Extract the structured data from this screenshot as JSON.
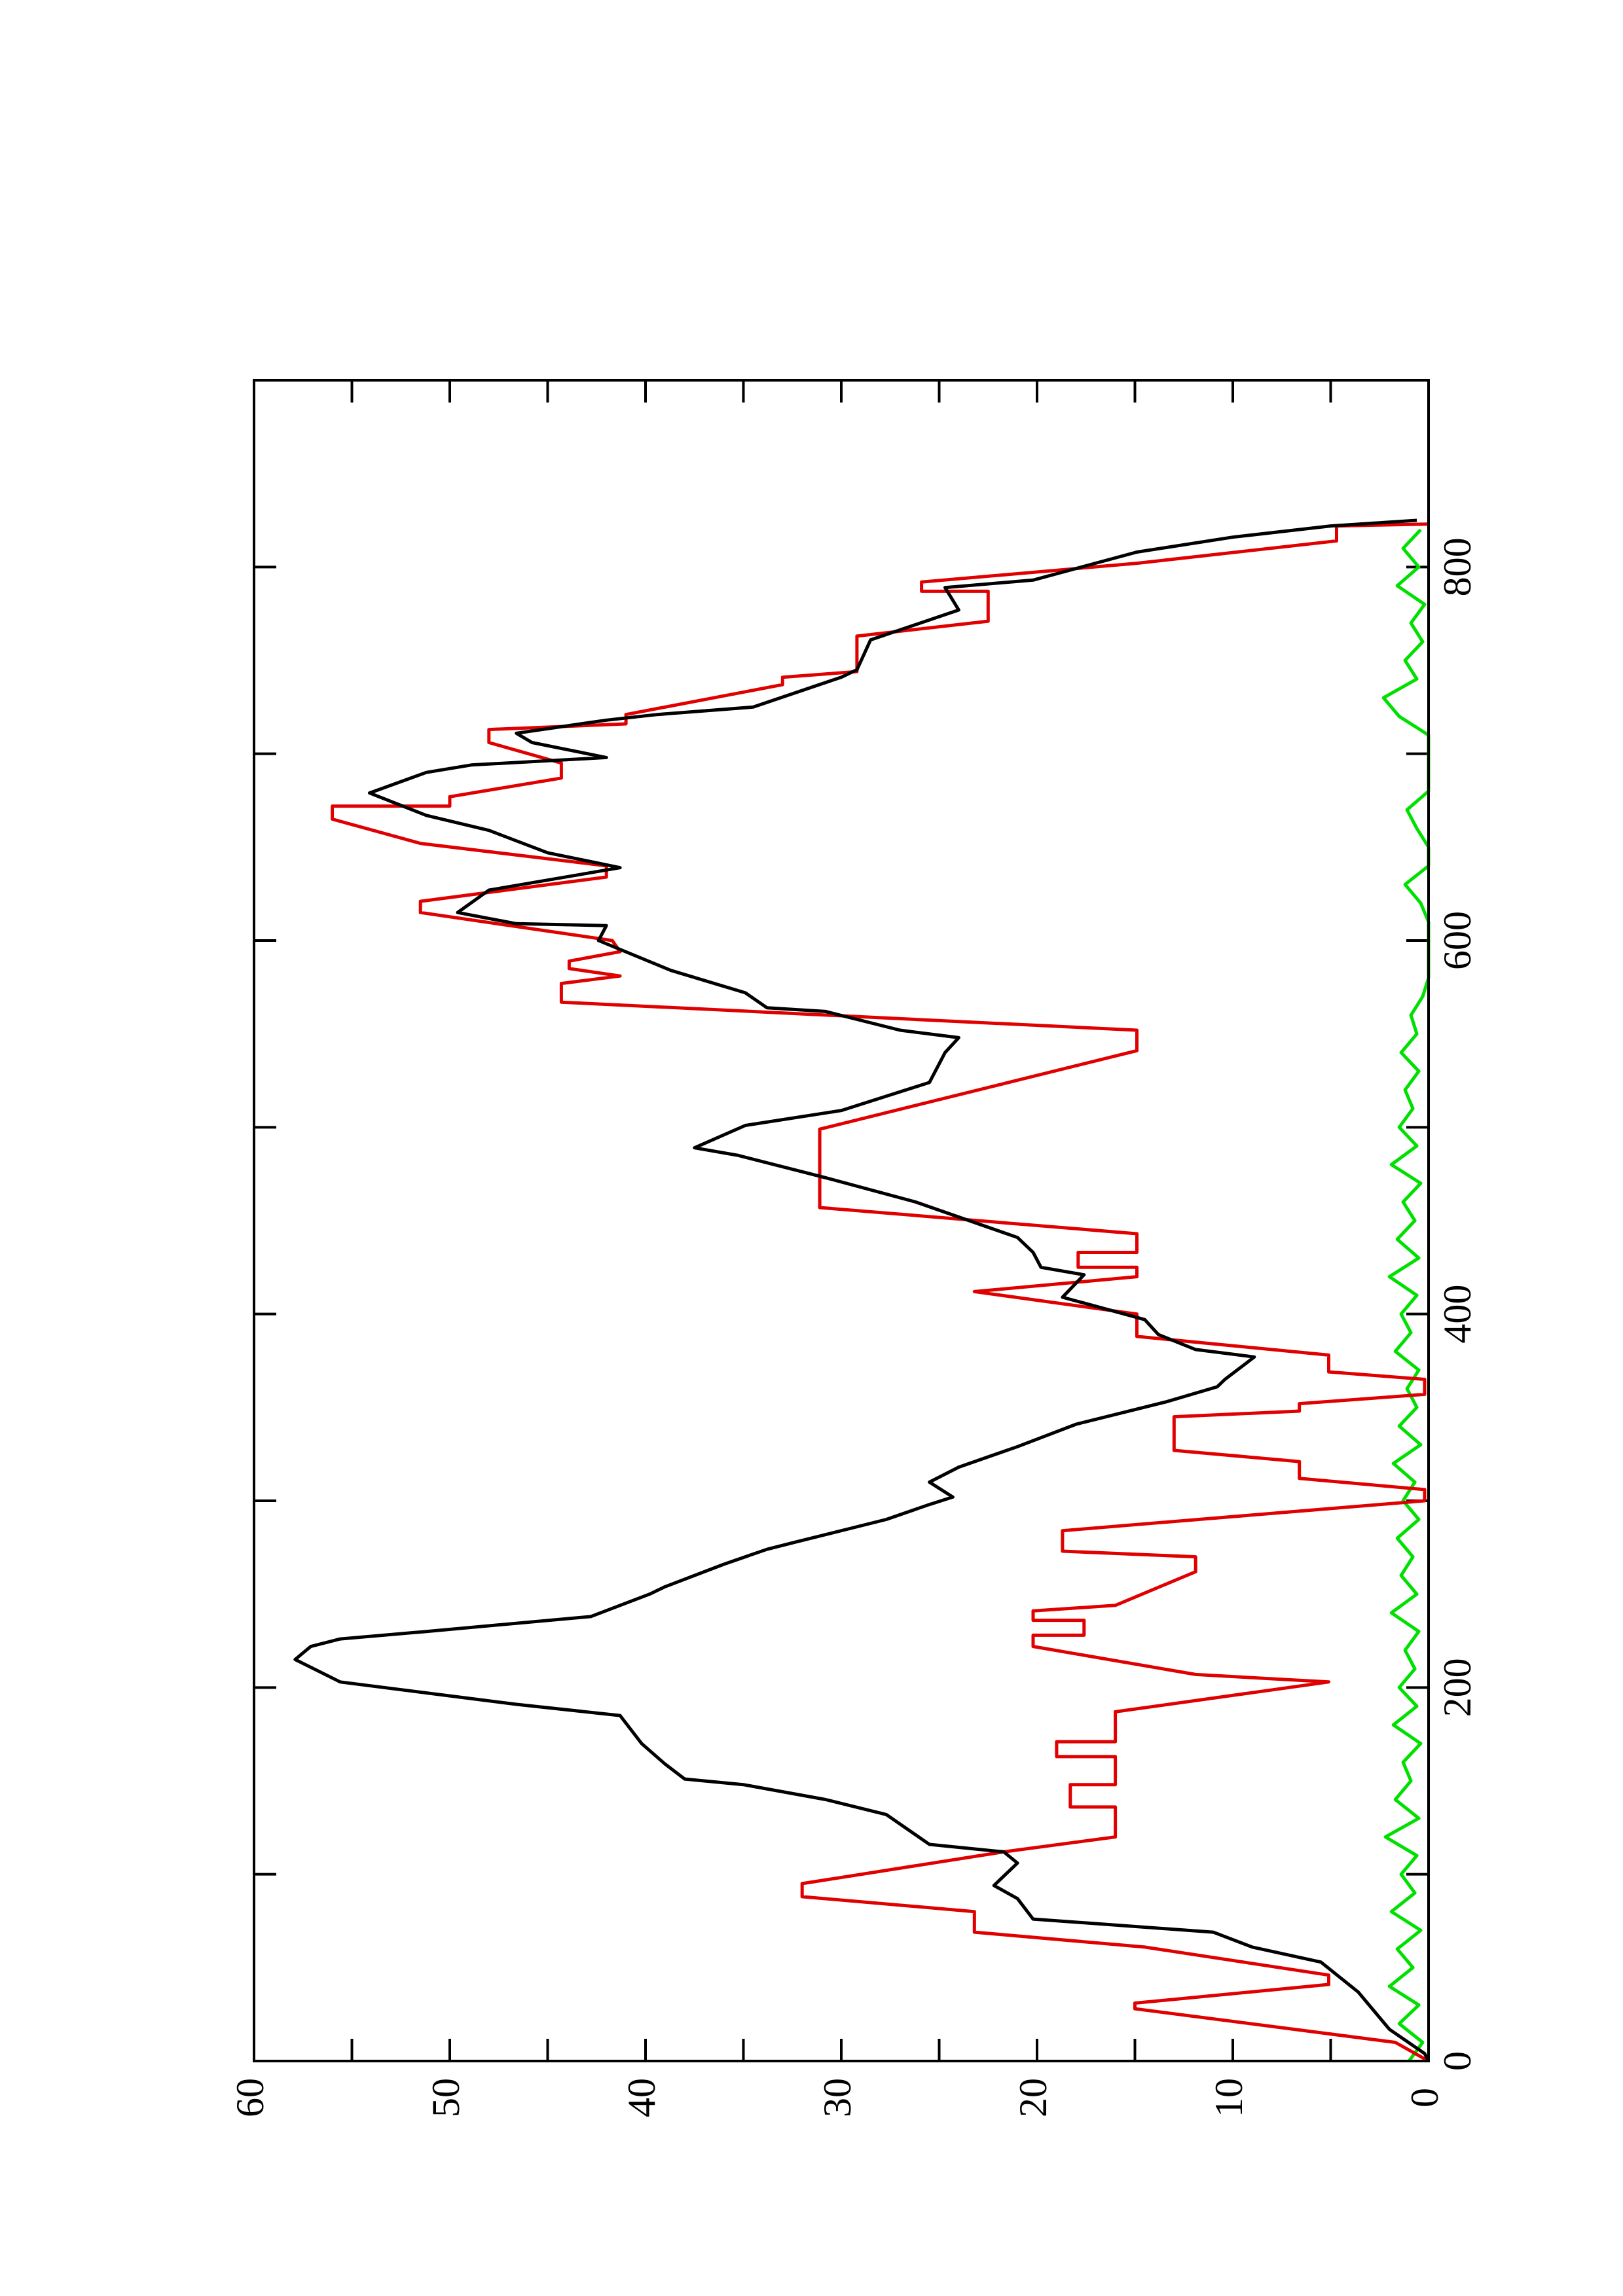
{
  "chart_data": {
    "type": "line",
    "xlim": [
      0,
      900
    ],
    "xticks": [
      0,
      200,
      400,
      600,
      800
    ],
    "xminorticks": [
      100,
      300,
      500,
      700
    ],
    "ylim": [
      0,
      60
    ],
    "yticks": [
      0,
      10,
      20,
      30,
      40,
      50,
      60
    ],
    "yminorticks": [
      5,
      15,
      25,
      35,
      45,
      55
    ],
    "series": [
      {
        "color": "#000000",
        "x": [
          0,
          4,
          17,
          37,
          53,
          61,
          69,
          76,
          87,
          94,
          106,
          112,
          116,
          132,
          140,
          148,
          151,
          159,
          170,
          185,
          191,
          195,
          203,
          215,
          222,
          226,
          230,
          238,
          250,
          254,
          266,
          274,
          278,
          290,
          298,
          302,
          310,
          318,
          329,
          341,
          353,
          361,
          365,
          377,
          381,
          389,
          397,
          409,
          421,
          425,
          433,
          441,
          460,
          473,
          485,
          489,
          501,
          509,
          524,
          540,
          548,
          552,
          562,
          564,
          572,
          584,
          600,
          608,
          609,
          615,
          627,
          639,
          647,
          659,
          667,
          679,
          690,
          694,
          698,
          706,
          711,
          718,
          721,
          725,
          741,
          745,
          761,
          777,
          789,
          793,
          808,
          816,
          822,
          825
        ],
        "values": [
          0,
          0.2,
          2,
          3.6,
          5.5,
          9,
          11,
          20.2,
          21,
          22.2,
          21,
          21.7,
          25.5,
          27.7,
          30.8,
          35,
          38,
          39,
          40.2,
          41.3,
          46.6,
          49.6,
          55.6,
          57.9,
          57.1,
          55.6,
          51.2,
          42.8,
          39.8,
          39,
          36,
          33.8,
          32.3,
          27.7,
          25.5,
          24.3,
          25.5,
          24,
          21,
          18,
          13.4,
          10.8,
          10.4,
          8.9,
          11.9,
          13.8,
          14.5,
          18.7,
          17.6,
          19.8,
          20.2,
          21,
          26.2,
          30.8,
          35.3,
          37.5,
          34.9,
          30,
          25.5,
          24.7,
          24,
          27,
          30.8,
          33.8,
          34.9,
          38.7,
          42.4,
          42,
          46.6,
          49.6,
          48,
          41.3,
          45,
          48,
          51.2,
          54.1,
          51.2,
          48.9,
          42,
          45.8,
          46.6,
          42,
          39.4,
          34.5,
          30,
          29.2,
          28.5,
          24,
          24.7,
          20.2,
          14.9,
          10,
          5,
          0.6
        ]
      },
      {
        "color": "#e00000",
        "x": [
          0,
          10,
          28,
          31,
          41,
          46,
          61,
          69,
          80,
          88,
          95,
          112,
          120,
          136,
          136,
          148,
          148,
          163,
          163,
          171,
          171,
          187,
          203,
          207,
          222,
          228,
          228,
          236,
          236,
          241,
          244,
          262,
          270,
          273,
          284,
          300,
          306,
          312,
          321,
          327,
          345,
          348,
          352,
          357,
          365,
          369,
          378,
          388,
          400,
          412,
          420,
          425,
          425,
          433,
          433,
          443,
          457,
          499,
          541,
          552,
          567,
          577,
          581,
          585,
          589,
          594,
          600,
          615,
          621,
          634,
          640,
          652,
          665,
          672,
          672,
          677,
          687,
          695,
          706,
          713,
          716,
          721,
          737,
          741,
          744,
          763,
          771,
          787,
          787,
          792,
          802,
          814,
          822,
          823
        ],
        "values": [
          0,
          1.7,
          15,
          15,
          5.1,
          5.1,
          14.5,
          23.2,
          23.2,
          32,
          32,
          21.7,
          16,
          16,
          18.3,
          18.3,
          16,
          16,
          19,
          19,
          16,
          16,
          5.1,
          11.9,
          20.2,
          20.2,
          17.6,
          17.6,
          20.2,
          20.2,
          16,
          11.9,
          11.9,
          18.7,
          18.7,
          0.2,
          0.2,
          6.6,
          6.6,
          13,
          13,
          6.6,
          6.6,
          0.2,
          0.2,
          5.1,
          5.1,
          14.9,
          14.9,
          23.2,
          14.9,
          14.9,
          17.9,
          17.9,
          14.9,
          14.9,
          31.1,
          31.1,
          14.9,
          14.9,
          44.3,
          44.3,
          41.3,
          43.9,
          43.9,
          41.3,
          41.7,
          51.5,
          51.5,
          42,
          42,
          51.5,
          56,
          56,
          50,
          50,
          44.3,
          44.3,
          48,
          48,
          41,
          41,
          33,
          33,
          29.2,
          29.2,
          22.5,
          22.5,
          25.9,
          25.9,
          14.9,
          4.7,
          4.7,
          0
        ]
      },
      {
        "color": "#00e000",
        "x": [
          0,
          10,
          20,
          30,
          40,
          50,
          60,
          70,
          80,
          90,
          100,
          110,
          120,
          130,
          140,
          150,
          160,
          170,
          180,
          190,
          200,
          210,
          220,
          230,
          240,
          250,
          260,
          270,
          280,
          290,
          300,
          310,
          320,
          330,
          340,
          350,
          360,
          370,
          380,
          390,
          400,
          410,
          420,
          430,
          440,
          450,
          460,
          470,
          480,
          490,
          500,
          510,
          520,
          530,
          540,
          550,
          560,
          570,
          580,
          590,
          600,
          610,
          620,
          630,
          640,
          650,
          660,
          670,
          680,
          690,
          700,
          710,
          720,
          730,
          740,
          750,
          760,
          770,
          780,
          790,
          800,
          810,
          820
        ],
        "values": [
          1,
          0.3,
          1.5,
          0.5,
          2,
          0.8,
          1.6,
          0.4,
          1.9,
          0.7,
          1.4,
          0.6,
          2.2,
          0.5,
          1.7,
          0.9,
          1.3,
          0.4,
          1.8,
          0.6,
          1.5,
          0.7,
          1.2,
          0.5,
          1.9,
          0.6,
          1.4,
          0.8,
          1.6,
          0.5,
          1.3,
          0.7,
          1.8,
          0.4,
          1.5,
          0.6,
          1.1,
          0.5,
          1.7,
          0.9,
          1.4,
          0.6,
          2,
          0.5,
          1.6,
          0.7,
          1.3,
          0.4,
          1.9,
          0.6,
          1.5,
          0.8,
          1.2,
          0.5,
          1.4,
          0.6,
          0.9,
          0.3,
          0,
          0,
          0,
          0,
          0.4,
          1.2,
          0,
          0,
          0.6,
          1.1,
          0,
          0,
          0,
          0,
          1.5,
          2.3,
          0.6,
          1.2,
          0.3,
          0.9,
          0.2,
          1.6,
          0.5,
          1.3,
          0.4
        ]
      }
    ]
  }
}
